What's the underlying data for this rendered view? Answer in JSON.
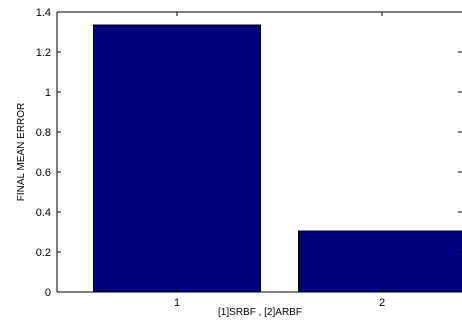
{
  "chart_data": {
    "type": "bar",
    "categories": [
      "1",
      "2"
    ],
    "values": [
      1.335,
      0.305
    ],
    "xlabel": "[1]SRBF ,  [2]ARBF",
    "ylabel": "FINAL MEAN ERROR",
    "ylim": [
      0,
      1.4
    ],
    "yticks": [
      0,
      0.2,
      0.4,
      0.6,
      0.8,
      1,
      1.2,
      1.4
    ],
    "yticklabels": [
      "0",
      "0.2",
      "0.4",
      "0.6",
      "0.8",
      "1",
      "1.2",
      "1.4"
    ],
    "bar_color": "#000080",
    "grid": false
  }
}
